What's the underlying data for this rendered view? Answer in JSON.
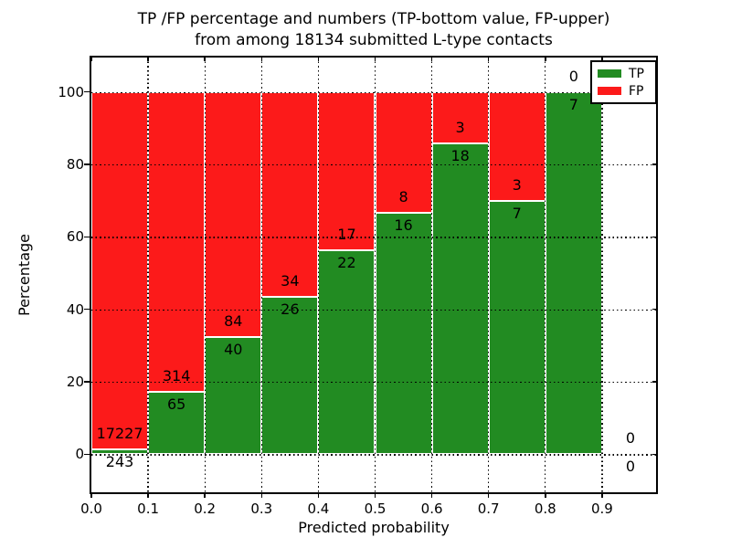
{
  "chart_data": {
    "type": "bar",
    "stacked": true,
    "title_line1": "TP /FP percentage and numbers (TP-bottom value, FP-upper)",
    "title_line2": "from among 18134 submitted L-type contacts",
    "total_submitted": 18134,
    "xlabel": "Predicted probability",
    "ylabel": "Percentage",
    "x_tick_labels": [
      "0.0",
      "0.1",
      "0.2",
      "0.3",
      "0.4",
      "0.5",
      "0.6",
      "0.7",
      "0.8",
      "0.9"
    ],
    "y_ticks": [
      0,
      20,
      40,
      60,
      80,
      100
    ],
    "ylim": [
      -10,
      110
    ],
    "bin_width": 0.1,
    "grid": "dotted",
    "bar_edge_color": "#ffffff",
    "bins": [
      {
        "x_start": 0.0,
        "x_end": 0.1,
        "tp": 243,
        "fp": 17227
      },
      {
        "x_start": 0.1,
        "x_end": 0.2,
        "tp": 65,
        "fp": 314
      },
      {
        "x_start": 0.2,
        "x_end": 0.3,
        "tp": 40,
        "fp": 84
      },
      {
        "x_start": 0.3,
        "x_end": 0.4,
        "tp": 26,
        "fp": 34
      },
      {
        "x_start": 0.4,
        "x_end": 0.5,
        "tp": 22,
        "fp": 17
      },
      {
        "x_start": 0.5,
        "x_end": 0.6,
        "tp": 16,
        "fp": 8
      },
      {
        "x_start": 0.6,
        "x_end": 0.7,
        "tp": 18,
        "fp": 3
      },
      {
        "x_start": 0.7,
        "x_end": 0.8,
        "tp": 7,
        "fp": 3
      },
      {
        "x_start": 0.8,
        "x_end": 0.9,
        "tp": 7,
        "fp": 0
      },
      {
        "x_start": 0.9,
        "x_end": 1.0,
        "tp": 0,
        "fp": 0
      }
    ],
    "legend": {
      "position": "upper right",
      "entries": [
        {
          "label": "TP",
          "color": "#228B22"
        },
        {
          "label": "FP",
          "color": "#FC1A1A"
        }
      ]
    }
  }
}
